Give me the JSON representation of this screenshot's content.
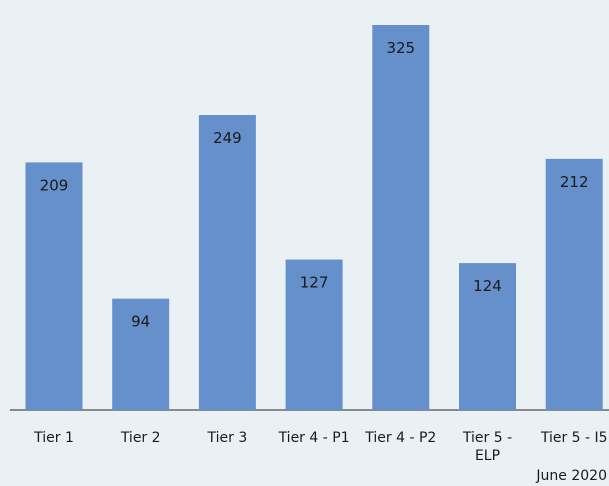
{
  "chart_data": {
    "type": "bar",
    "categories": [
      "Tier 1",
      "Tier 2",
      "Tier 3",
      "Tier 4 - P1",
      "Tier 4 - P2",
      "Tier 5 - ELP",
      "Tier 5 - I5"
    ],
    "values": [
      209,
      94,
      249,
      127,
      325,
      124,
      212
    ],
    "bar_color": "#6690cb",
    "axis_color": "#8a8a8a",
    "background_color": "#eaf1f5",
    "grid": false,
    "legend": false
  },
  "footnote": "June 2020"
}
